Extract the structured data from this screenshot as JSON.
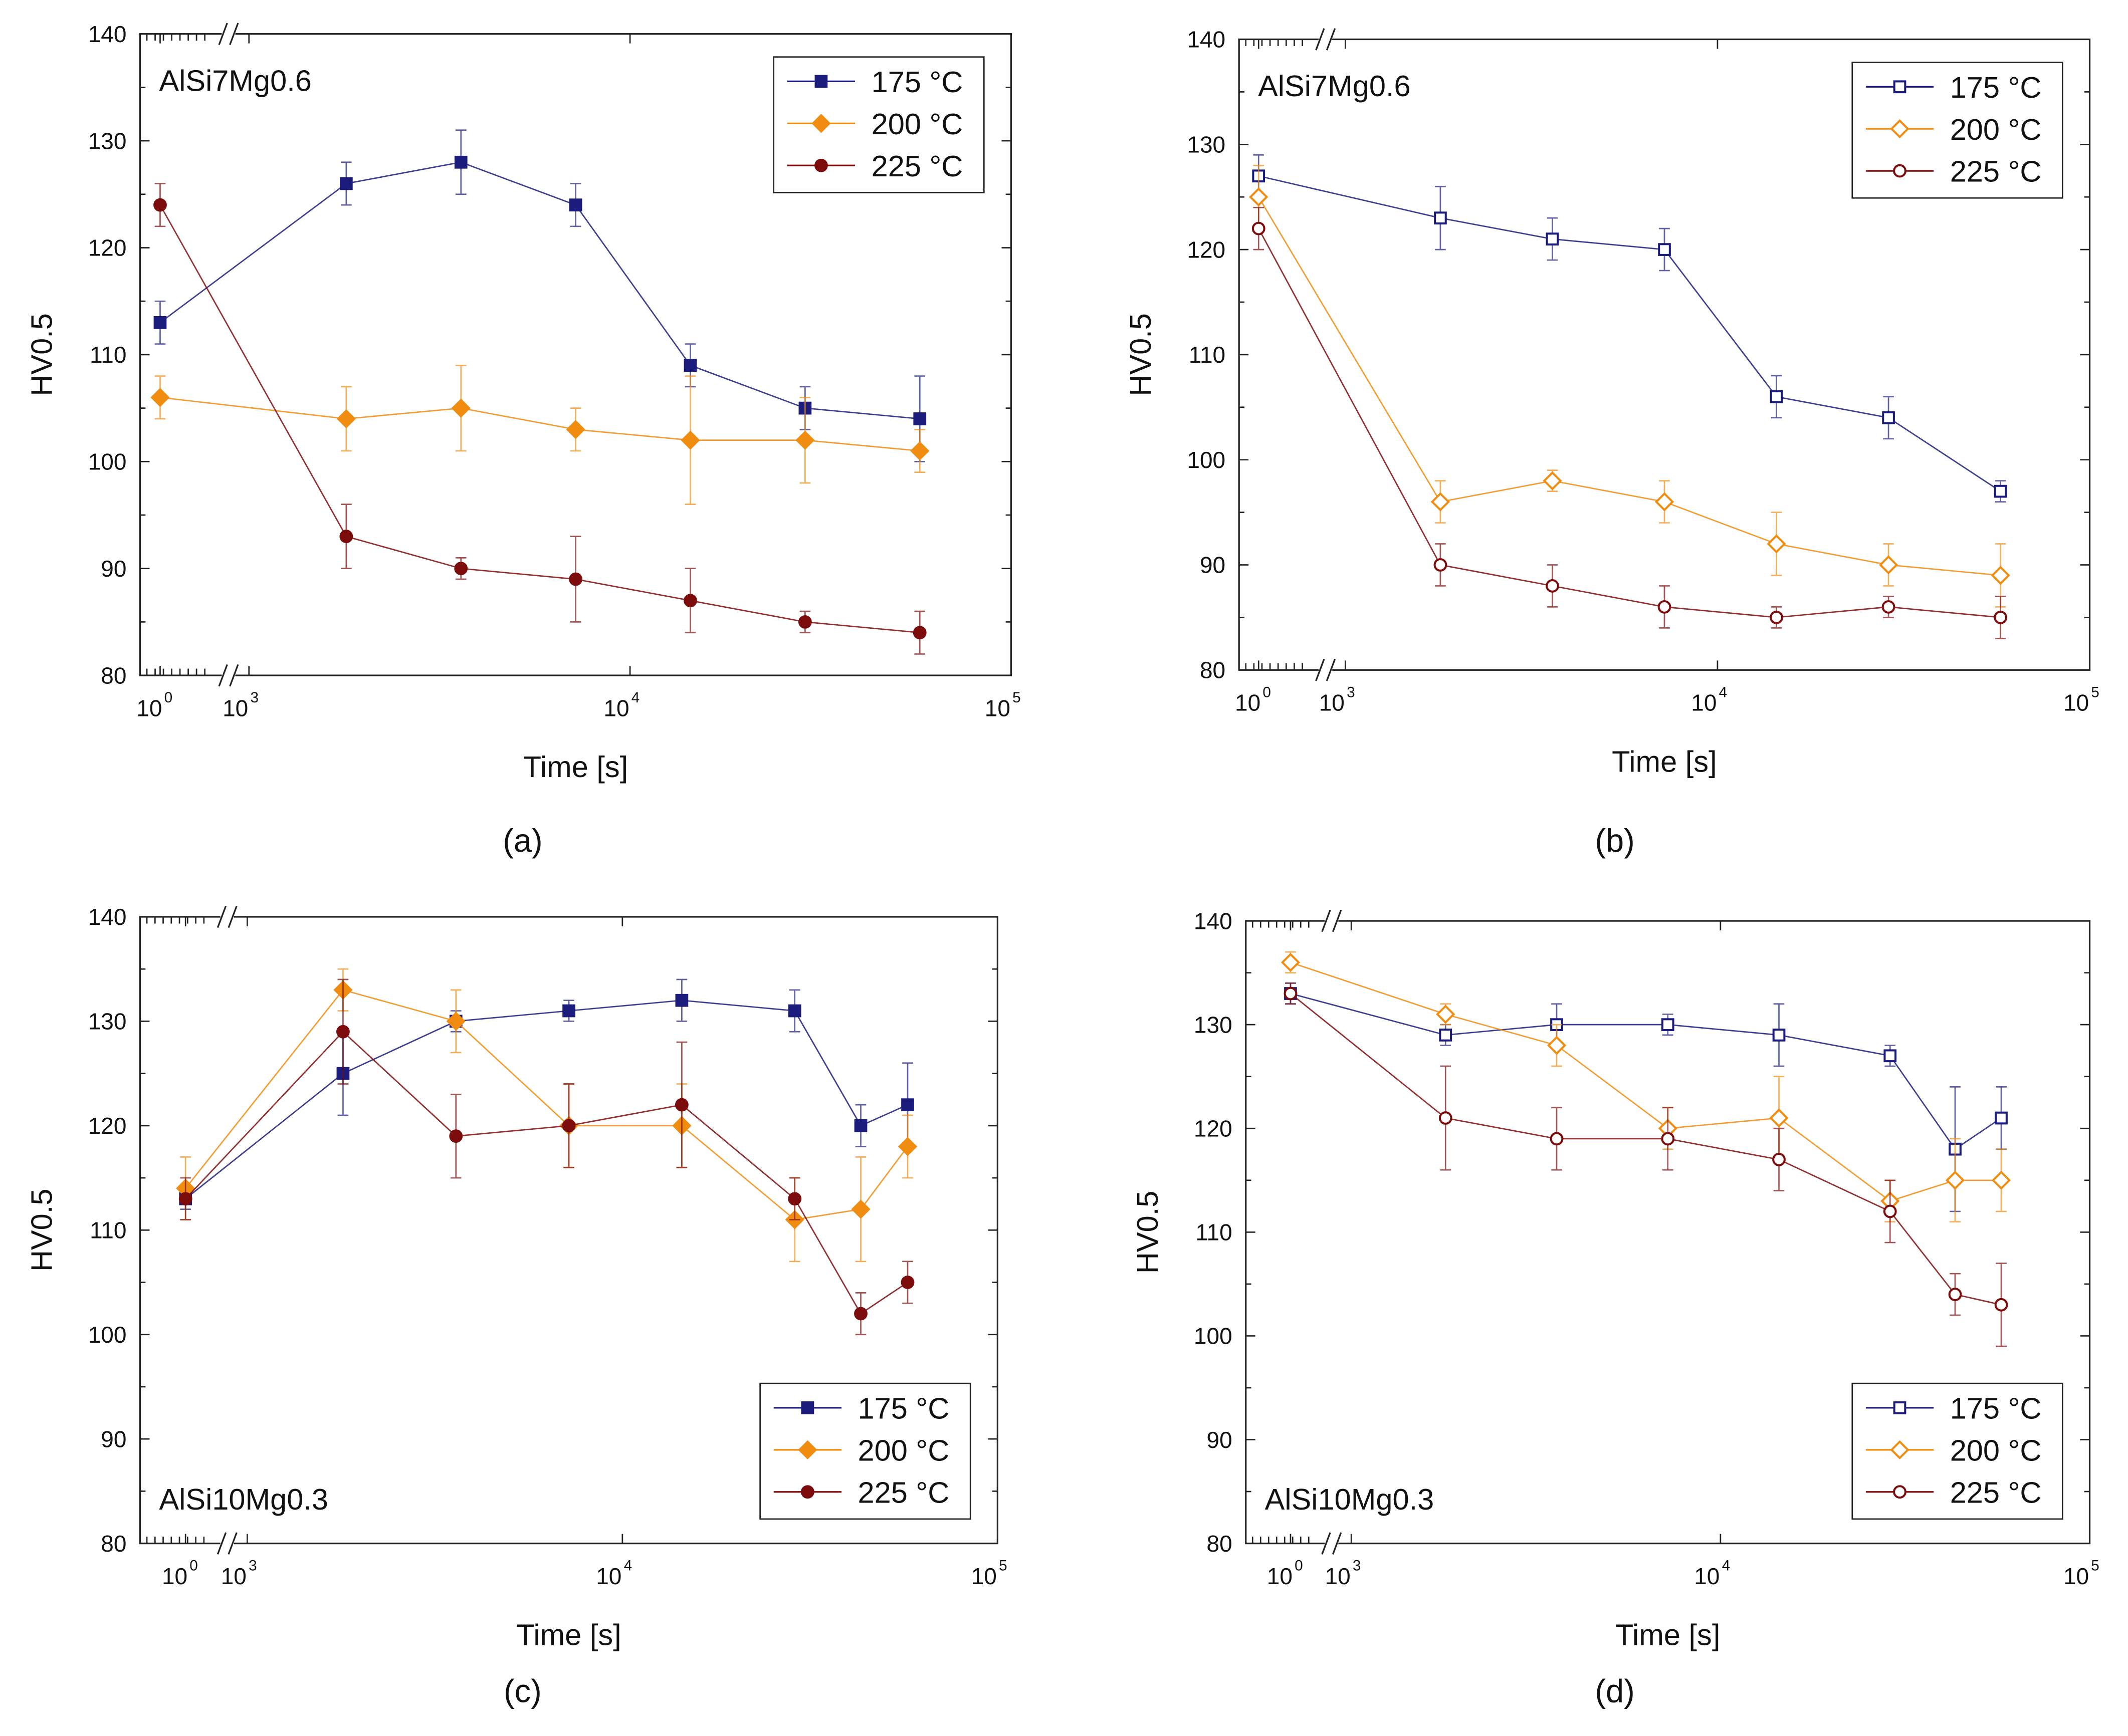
{
  "colors": {
    "175": "#1c1c7c",
    "200": "#f08c10",
    "225": "#7c0c0c"
  },
  "chart_data": [
    {
      "id": "a",
      "type": "line",
      "panel_label": "(a)",
      "material": "AlSi7Mg0.6",
      "marker_fill": "filled",
      "legend_position": "top-right",
      "material_position": "top-left",
      "xlabel": "Time [s]",
      "ylabel": "HV0.5",
      "ylim": [
        80,
        140
      ],
      "yticks": [
        "80",
        "90",
        "100",
        "110",
        "120",
        "130",
        "140"
      ],
      "xticks": [
        {
          "label": "10",
          "exp": "0",
          "value": 1
        },
        {
          "label": "10",
          "exp": "3",
          "value": 1000
        },
        {
          "label": "10",
          "exp": "4",
          "value": 10000
        },
        {
          "label": "10",
          "exp": "5",
          "value": 100000
        }
      ],
      "x": [
        1,
        1800,
        3600,
        7200,
        14400,
        28800,
        57600
      ],
      "series": [
        {
          "name": "175 °C",
          "key": "175",
          "values": [
            113,
            126,
            128,
            124,
            109,
            105,
            104
          ],
          "err": [
            2,
            2,
            3,
            2,
            2,
            2,
            4
          ]
        },
        {
          "name": "200 °C",
          "key": "200",
          "values": [
            106,
            104,
            105,
            103,
            102,
            102,
            101
          ],
          "err": [
            2,
            3,
            4,
            2,
            6,
            4,
            2
          ]
        },
        {
          "name": "225 °C",
          "key": "225",
          "values": [
            124,
            93,
            90,
            89,
            87,
            85,
            84
          ],
          "err": [
            2,
            3,
            1,
            4,
            3,
            1,
            2
          ]
        }
      ]
    },
    {
      "id": "b",
      "type": "line",
      "panel_label": "(b)",
      "material": "AlSi7Mg0.6",
      "marker_fill": "open",
      "legend_position": "top-right",
      "material_position": "top-left",
      "xlabel": "Time [s]",
      "ylabel": "HV0.5",
      "ylim": [
        80,
        140
      ],
      "yticks": [
        "80",
        "90",
        "100",
        "110",
        "120",
        "130",
        "140"
      ],
      "xticks": [
        {
          "label": "10",
          "exp": "0",
          "value": 1
        },
        {
          "label": "10",
          "exp": "3",
          "value": 1000
        },
        {
          "label": "10",
          "exp": "4",
          "value": 10000
        },
        {
          "label": "10",
          "exp": "5",
          "value": 100000
        }
      ],
      "x": [
        1,
        1800,
        3600,
        7200,
        14400,
        28800,
        57600
      ],
      "series": [
        {
          "name": "175 °C",
          "key": "175",
          "values": [
            127,
            123,
            121,
            120,
            106,
            104,
            97
          ],
          "err": [
            2,
            3,
            2,
            2,
            2,
            2,
            1
          ]
        },
        {
          "name": "200 °C",
          "key": "200",
          "values": [
            125,
            96,
            98,
            96,
            92,
            90,
            89
          ],
          "err": [
            3,
            2,
            1,
            2,
            3,
            2,
            3
          ]
        },
        {
          "name": "225 °C",
          "key": "225",
          "values": [
            122,
            90,
            88,
            86,
            85,
            86,
            85
          ],
          "err": [
            2,
            2,
            2,
            2,
            1,
            1,
            2
          ]
        }
      ]
    },
    {
      "id": "c",
      "type": "line",
      "panel_label": "(c)",
      "material": "AlSi10Mg0.3",
      "marker_fill": "filled",
      "legend_position": "bottom-right",
      "material_position": "bottom-left",
      "xlabel": "Time [s]",
      "ylabel": "HV0.5",
      "ylim": [
        80,
        140
      ],
      "yticks": [
        "80",
        "90",
        "100",
        "110",
        "120",
        "130",
        "140"
      ],
      "xticks": [
        {
          "label": "10",
          "exp": "0",
          "value": 1
        },
        {
          "label": "10",
          "exp": "3",
          "value": 1000
        },
        {
          "label": "10",
          "exp": "4",
          "value": 10000
        },
        {
          "label": "10",
          "exp": "5",
          "value": 100000
        }
      ],
      "x": [
        1,
        1800,
        3600,
        7200,
        14400,
        28800,
        43200,
        57600
      ],
      "series": [
        {
          "name": "175 °C",
          "key": "175",
          "values": [
            113,
            125,
            130,
            131,
            132,
            131,
            120,
            122
          ],
          "err": [
            1,
            4,
            1,
            1,
            2,
            2,
            2,
            4
          ]
        },
        {
          "name": "200 °C",
          "key": "200",
          "values": [
            114,
            133,
            130,
            120,
            120,
            111,
            112,
            118
          ],
          "err": [
            3,
            2,
            3,
            4,
            4,
            4,
            5,
            3
          ]
        },
        {
          "name": "225 °C",
          "key": "225",
          "values": [
            113,
            129,
            119,
            120,
            122,
            113,
            102,
            105
          ],
          "err": [
            2,
            5,
            4,
            4,
            6,
            2,
            2,
            2
          ]
        }
      ]
    },
    {
      "id": "d",
      "type": "line",
      "panel_label": "(d)",
      "material": "AlSi10Mg0.3",
      "marker_fill": "open",
      "legend_position": "bottom-right",
      "material_position": "bottom-left",
      "xlabel": "Time [s]",
      "ylabel": "HV0.5",
      "ylim": [
        80,
        140
      ],
      "yticks": [
        "80",
        "90",
        "100",
        "110",
        "120",
        "130",
        "140"
      ],
      "xticks": [
        {
          "label": "10",
          "exp": "0",
          "value": 1
        },
        {
          "label": "10",
          "exp": "3",
          "value": 1000
        },
        {
          "label": "10",
          "exp": "4",
          "value": 10000
        },
        {
          "label": "10",
          "exp": "5",
          "value": 100000
        }
      ],
      "x": [
        1,
        1800,
        3600,
        7200,
        14400,
        28800,
        43200,
        57600
      ],
      "series": [
        {
          "name": "175 °C",
          "key": "175",
          "values": [
            133,
            129,
            130,
            130,
            129,
            127,
            118,
            121
          ],
          "err": [
            1,
            1,
            2,
            1,
            3,
            1,
            6,
            3
          ]
        },
        {
          "name": "200 °C",
          "key": "200",
          "values": [
            136,
            131,
            128,
            120,
            121,
            113,
            115,
            115
          ],
          "err": [
            1,
            1,
            2,
            2,
            4,
            2,
            4,
            3
          ]
        },
        {
          "name": "225 °C",
          "key": "225",
          "values": [
            133,
            121,
            119,
            119,
            117,
            112,
            104,
            103
          ],
          "err": [
            1,
            5,
            3,
            3,
            3,
            3,
            2,
            4
          ]
        }
      ]
    }
  ]
}
